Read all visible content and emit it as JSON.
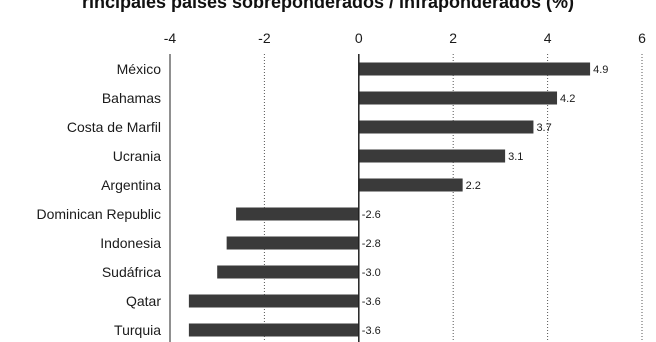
{
  "chart_data": {
    "type": "bar",
    "orientation": "horizontal",
    "title": "rincipales países sobreponderados / infraponderados (%)",
    "categories": [
      "México",
      "Bahamas",
      "Costa de Marfil",
      "Ucrania",
      "Argentina",
      "Dominican Republic",
      "Indonesia",
      "Sudáfrica",
      "Qatar",
      "Turquia"
    ],
    "values": [
      4.9,
      4.2,
      3.7,
      3.1,
      2.2,
      -2.6,
      -2.8,
      -3.0,
      -3.6,
      -3.6
    ],
    "value_labels": [
      "4.9",
      "4.2",
      "3.7",
      "3.1",
      "2.2",
      "-2.6",
      "-2.8",
      "-3.0",
      "-3.6",
      "-3.6"
    ],
    "xlim": [
      -4,
      6
    ],
    "xticks": [
      -4,
      -2,
      0,
      2,
      4,
      6
    ],
    "xtick_labels": [
      "-4",
      "-2",
      "0",
      "2",
      "4",
      "6"
    ],
    "xaxis_position": "top",
    "grid": "vertical dotted",
    "bar_color": "#3a3a3a",
    "axis_color": "#222222",
    "grid_color": "#555555"
  }
}
